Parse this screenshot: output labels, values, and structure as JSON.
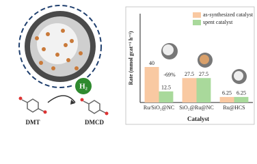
{
  "illustration": {
    "gas": "H₂",
    "reactant": "DMT",
    "product": "DMCD"
  },
  "chart_data": {
    "type": "bar",
    "y_label": "Rate (mmol gcat⁻¹ h⁻¹)",
    "x_label": "Catalyst",
    "categories": [
      "Ru/SiO₂@NC",
      "SiO₂@Ru@NC",
      "Ru@HCS"
    ],
    "series": [
      {
        "name": "as-synthesized catalyst",
        "color": "#f9c9a2",
        "values": [
          40,
          27.5,
          6.25
        ]
      },
      {
        "name": "spent catalyst",
        "color": "#a9d99b",
        "values": [
          12.5,
          27.5,
          6.25
        ]
      }
    ],
    "annotation": "-69%",
    "ylim": [
      0,
      100
    ],
    "legend": "upper right"
  }
}
